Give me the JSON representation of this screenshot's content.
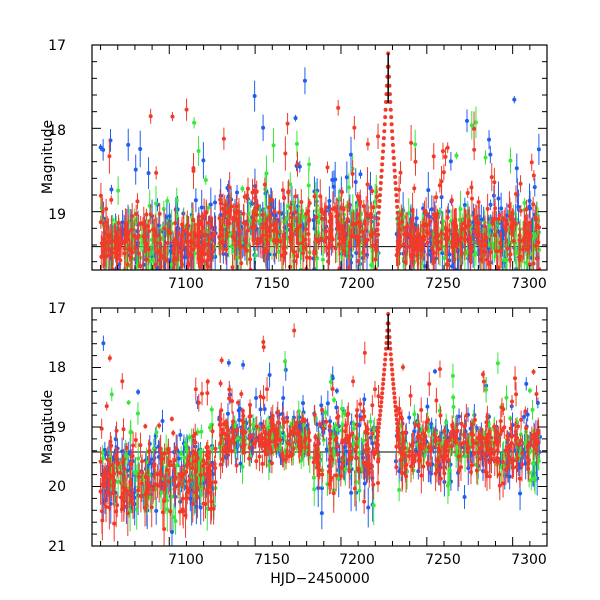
{
  "chart_data": [
    {
      "type": "scatter",
      "panel": "top",
      "ylabel": "Magnitude",
      "xlabel": "",
      "xlim": [
        7055,
        7320
      ],
      "ylim": [
        19.7,
        17.0
      ],
      "x_ticks": [
        7100,
        7150,
        7200,
        7250,
        7300
      ],
      "y_ticks": [
        17,
        18,
        19
      ],
      "x_tick_labels": [
        "7100",
        "7150",
        "7200",
        "7250",
        "7300"
      ],
      "y_tick_labels": [
        "17",
        "18",
        "19"
      ],
      "baseline_mag": 19.42,
      "series": [
        {
          "name": "blue",
          "color": "#1f5ff0",
          "seed": 11,
          "density": 1.0
        },
        {
          "name": "green",
          "color": "#39e83a",
          "seed": 23,
          "density": 0.7
        },
        {
          "name": "red",
          "color": "#f23a2a",
          "seed": 37,
          "density": 1.3
        }
      ],
      "segments": [
        {
          "start": 7060,
          "end": 7127,
          "base": 19.4,
          "spread": 0.35
        },
        {
          "start": 7129,
          "end": 7182,
          "base": 19.2,
          "spread": 0.35
        },
        {
          "start": 7184,
          "end": 7222,
          "base": 19.25,
          "spread": 0.4
        },
        {
          "start": 7232,
          "end": 7316,
          "base": 19.3,
          "spread": 0.35
        }
      ],
      "flare": {
        "peak_hjd": 7227.5,
        "peak_mag": 17.1,
        "width": 2.5
      }
    },
    {
      "type": "scatter",
      "panel": "bottom",
      "ylabel": "Magnitude",
      "xlabel": "HJD−2450000",
      "xlim": [
        7055,
        7320
      ],
      "ylim": [
        21.0,
        17.0
      ],
      "x_ticks": [
        7100,
        7150,
        7200,
        7250,
        7300
      ],
      "y_ticks": [
        17,
        18,
        19,
        20,
        21
      ],
      "x_tick_labels": [
        "7100",
        "7150",
        "7200",
        "7250",
        "7300"
      ],
      "y_tick_labels": [
        "17",
        "18",
        "19",
        "20",
        "21"
      ],
      "baseline_mag": 19.42,
      "series": [
        {
          "name": "blue",
          "color": "#1f5ff0",
          "seed": 41,
          "density": 1.0
        },
        {
          "name": "green",
          "color": "#39e83a",
          "seed": 53,
          "density": 0.7
        },
        {
          "name": "red",
          "color": "#f23a2a",
          "seed": 67,
          "density": 1.3
        }
      ],
      "segments": [
        {
          "start": 7060,
          "end": 7127,
          "base": 19.8,
          "spread": 0.6
        },
        {
          "start": 7129,
          "end": 7182,
          "base": 19.2,
          "spread": 0.35
        },
        {
          "start": 7184,
          "end": 7222,
          "base": 19.35,
          "spread": 0.7
        },
        {
          "start": 7232,
          "end": 7316,
          "base": 19.35,
          "spread": 0.45
        }
      ],
      "flare": {
        "peak_hjd": 7227.5,
        "peak_mag": 17.1,
        "width": 2.5
      }
    }
  ]
}
